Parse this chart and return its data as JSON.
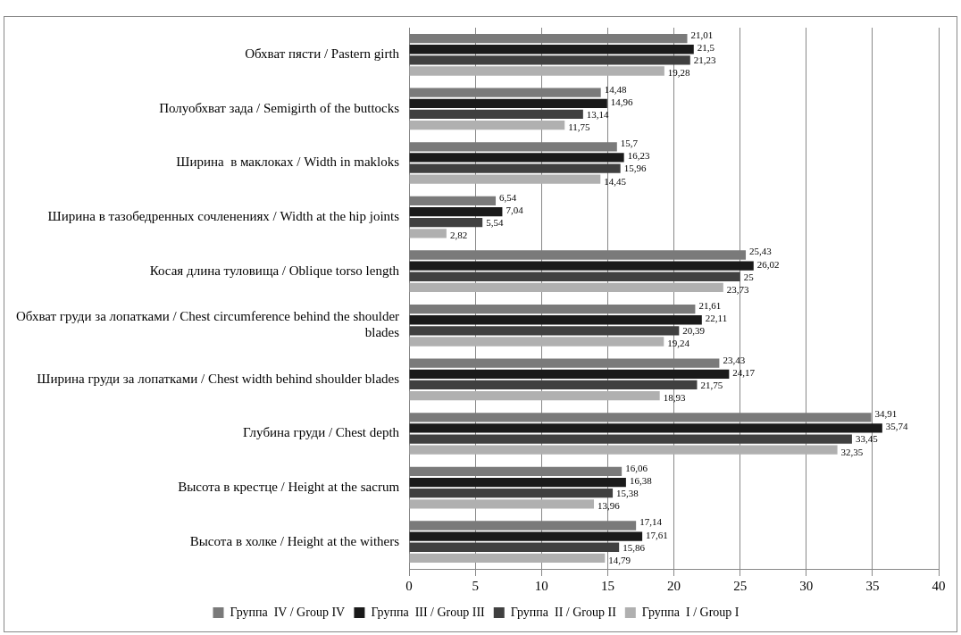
{
  "chart_data": {
    "type": "bar",
    "orientation": "horizontal",
    "categories": [
      "Обхват пясти / Pastern girth",
      "Полуобхват зада / Semigirth of the buttocks",
      "Ширина  в маклоках / Width in makloks",
      "Ширина в тазобедренных сочленениях / Width at the hip joints",
      "Косая длина туловища / Oblique torso length",
      "Обхват груди за лопатками / Chest circumference behind the shoulder blades",
      "Ширина груди за лопатками / Chest width behind shoulder blades",
      "Глубина груди / Chest depth",
      "Высота в крестце / Height at the sacrum",
      "Высота в холке / Height at the withers"
    ],
    "series": [
      {
        "name": "Группа  IV / Group IV",
        "color": "#7a7a7a",
        "values": [
          21.01,
          14.48,
          15.7,
          6.54,
          25.43,
          21.61,
          23.43,
          34.91,
          16.06,
          17.14
        ],
        "value_labels": [
          "21,01",
          "14,48",
          "15,7",
          "6,54",
          "25,43",
          "21,61",
          "23,43",
          "34,91",
          "16,06",
          "17,14"
        ]
      },
      {
        "name": "Группа  III / Group III",
        "color": "#1a1a1a",
        "values": [
          21.5,
          14.96,
          16.23,
          7.04,
          26.02,
          22.11,
          24.17,
          35.74,
          16.38,
          17.61
        ],
        "value_labels": [
          "21,5",
          "14,96",
          "16,23",
          "7,04",
          "26,02",
          "22,11",
          "24,17",
          "35,74",
          "16,38",
          "17,61"
        ]
      },
      {
        "name": "Группа  II / Group II",
        "color": "#404040",
        "values": [
          21.23,
          13.14,
          15.96,
          5.54,
          25,
          20.39,
          21.75,
          33.45,
          15.38,
          15.86
        ],
        "value_labels": [
          "21,23",
          "13,14",
          "15,96",
          "5,54",
          "25",
          "20,39",
          "21,75",
          "33,45",
          "15,38",
          "15,86"
        ]
      },
      {
        "name": "Группа  I / Group I",
        "color": "#b0b0b0",
        "values": [
          19.28,
          11.75,
          14.45,
          2.82,
          23.73,
          19.24,
          18.93,
          32.35,
          13.96,
          14.79
        ],
        "value_labels": [
          "19,28",
          "11,75",
          "14,45",
          "2,82",
          "23,73",
          "19,24",
          "18,93",
          "32,35",
          "13,96",
          "14,79"
        ]
      }
    ],
    "xlim": [
      0,
      40
    ],
    "xticks": [
      0,
      5,
      10,
      15,
      20,
      25,
      30,
      35,
      40
    ],
    "grid": "x",
    "legend": "bottom"
  }
}
